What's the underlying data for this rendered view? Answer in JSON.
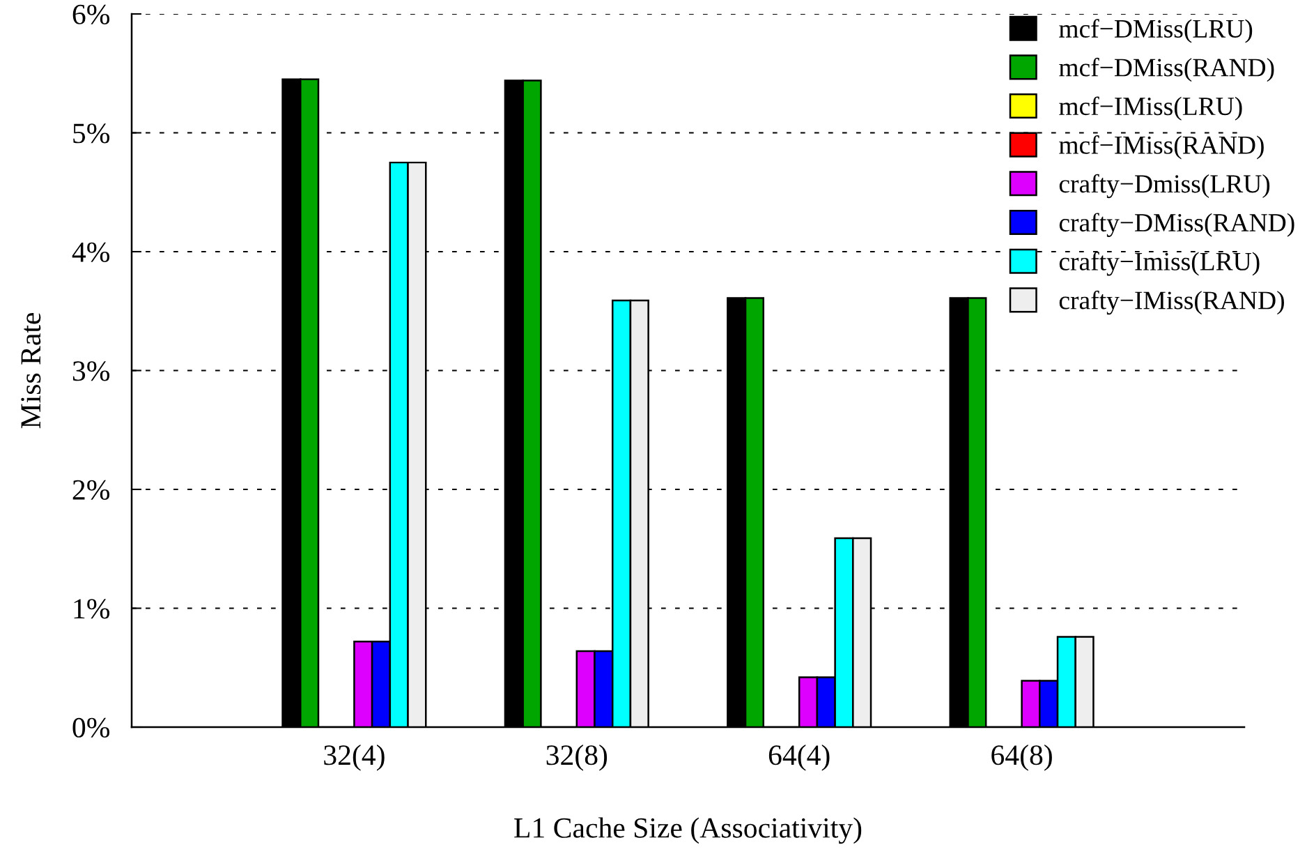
{
  "chart_data": {
    "type": "bar",
    "xlabel": "L1 Cache Size (Associativity)",
    "ylabel": "Miss Rate",
    "categories": [
      "32(4)",
      "32(8)",
      "64(4)",
      "64(8)"
    ],
    "series": [
      {
        "name": "mcf−DMiss(LRU)",
        "color": "#000000",
        "values": [
          5.45,
          5.44,
          3.61,
          3.61
        ]
      },
      {
        "name": "mcf−DMiss(RAND)",
        "color": "#00a600",
        "values": [
          5.45,
          5.44,
          3.61,
          3.61
        ]
      },
      {
        "name": "mcf−IMiss(LRU)",
        "color": "#ffff00",
        "values": [
          0,
          0,
          0,
          0
        ]
      },
      {
        "name": "mcf−IMiss(RAND)",
        "color": "#ff0000",
        "values": [
          0,
          0,
          0,
          0
        ]
      },
      {
        "name": "crafty−Dmiss(LRU)",
        "color": "#dd00ff",
        "values": [
          0.72,
          0.64,
          0.42,
          0.39
        ]
      },
      {
        "name": "crafty−DMiss(RAND)",
        "color": "#0000ff",
        "values": [
          0.72,
          0.64,
          0.42,
          0.39
        ]
      },
      {
        "name": "crafty−Imiss(LRU)",
        "color": "#00ffff",
        "values": [
          4.75,
          3.59,
          1.59,
          0.76
        ]
      },
      {
        "name": "crafty−IMiss(RAND)",
        "color": "#eeeeee",
        "values": [
          4.75,
          3.59,
          1.59,
          0.76
        ]
      }
    ],
    "ylim": [
      0,
      6
    ],
    "yticks": [
      {
        "value": 0,
        "label": "0%"
      },
      {
        "value": 1,
        "label": "1%"
      },
      {
        "value": 2,
        "label": "2%"
      },
      {
        "value": 3,
        "label": "3%"
      },
      {
        "value": 4,
        "label": "4%"
      },
      {
        "value": 5,
        "label": "5%"
      },
      {
        "value": 6,
        "label": "6%"
      }
    ],
    "grid": "y",
    "legend": "top right"
  }
}
